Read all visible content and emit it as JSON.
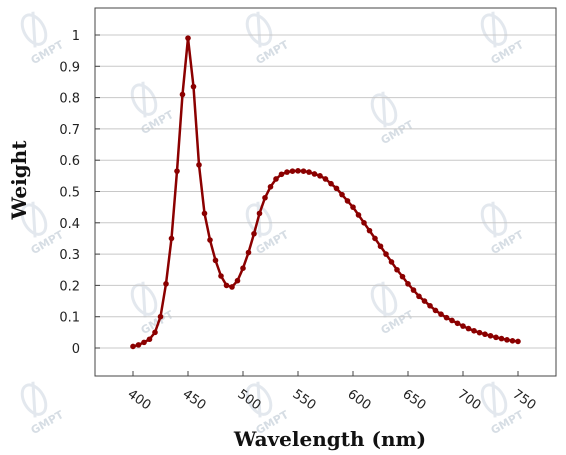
{
  "chart_data": {
    "type": "line",
    "title": "",
    "xlabel": "Wavelength (nm)",
    "ylabel": "Weight",
    "xlim": [
      400,
      750
    ],
    "ylim": [
      0,
      1
    ],
    "x_ticks": [
      "400",
      "450",
      "500",
      "550",
      "600",
      "650",
      "700",
      "750"
    ],
    "y_ticks": [
      "0",
      "0.1",
      "0.2",
      "0.3",
      "0.4",
      "0.5",
      "0.6",
      "0.7",
      "0.8",
      "0.9",
      "1"
    ],
    "grid": "horizontal",
    "legend": "none",
    "series_color": "#8b0000",
    "watermark": "GMPT",
    "series": [
      {
        "x": [
          400,
          405,
          410,
          415,
          420,
          425,
          430,
          435,
          440,
          445,
          450,
          455,
          460,
          465,
          470,
          475,
          480,
          485,
          490,
          495,
          500,
          505,
          510,
          515,
          520,
          525,
          530,
          535,
          540,
          545,
          550,
          555,
          560,
          565,
          570,
          575,
          580,
          585,
          590,
          595,
          600,
          605,
          610,
          615,
          620,
          625,
          630,
          635,
          640,
          645,
          650,
          655,
          660,
          665,
          670,
          675,
          680,
          685,
          690,
          695,
          700,
          705,
          710,
          715,
          720,
          725,
          730,
          735,
          740,
          745,
          750
        ],
        "y": [
          0.005,
          0.01,
          0.018,
          0.028,
          0.05,
          0.1,
          0.205,
          0.35,
          0.565,
          0.81,
          0.99,
          0.835,
          0.585,
          0.43,
          0.345,
          0.28,
          0.23,
          0.2,
          0.195,
          0.215,
          0.255,
          0.305,
          0.365,
          0.43,
          0.48,
          0.515,
          0.54,
          0.555,
          0.562,
          0.565,
          0.566,
          0.565,
          0.562,
          0.556,
          0.55,
          0.54,
          0.525,
          0.51,
          0.49,
          0.47,
          0.45,
          0.425,
          0.4,
          0.375,
          0.35,
          0.325,
          0.3,
          0.275,
          0.25,
          0.228,
          0.205,
          0.185,
          0.165,
          0.15,
          0.135,
          0.12,
          0.108,
          0.097,
          0.088,
          0.079,
          0.07,
          0.062,
          0.055,
          0.049,
          0.044,
          0.039,
          0.034,
          0.03,
          0.026,
          0.023,
          0.021
        ]
      }
    ]
  }
}
